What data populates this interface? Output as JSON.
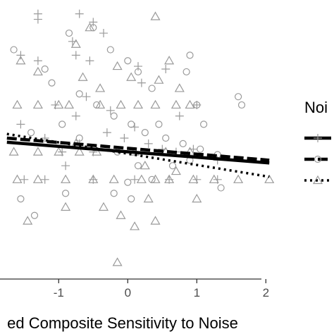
{
  "chart_data": {
    "type": "scatter",
    "xlabel": "ed Composite Sensitivity to Noise",
    "x_ticks": [
      "-1",
      "0",
      "1",
      "2"
    ],
    "x_tick_values": [
      -1,
      0,
      1,
      2
    ],
    "xlim": [
      -1.85,
      2.15
    ],
    "ylim": [
      0,
      100
    ],
    "legend": {
      "title": "Noi",
      "placement": "right",
      "entries": [
        {
          "marker": "plus",
          "linestyle": "solid"
        },
        {
          "marker": "circle",
          "linestyle": "dashed"
        },
        {
          "marker": "triangle",
          "linestyle": "dotted"
        }
      ]
    },
    "colors": {
      "points": "#9a9a9a",
      "lines": "#000000",
      "axis": "#333333"
    },
    "fit_lines": [
      {
        "style": "solid",
        "x": [
          -1.75,
          2.05
        ],
        "y": [
          48.5,
          41.0
        ]
      },
      {
        "style": "dashed",
        "x": [
          -1.75,
          2.05
        ],
        "y": [
          50.0,
          42.0
        ]
      },
      {
        "style": "dotted",
        "x": [
          -1.75,
          2.05
        ],
        "y": [
          51.5,
          36.0
        ]
      }
    ],
    "series": [
      {
        "marker": "plus",
        "points": [
          [
            -1.3,
            95
          ],
          [
            -1.3,
            93
          ],
          [
            -0.7,
            95
          ],
          [
            -0.5,
            92
          ],
          [
            -0.35,
            88
          ],
          [
            -0.75,
            80
          ],
          [
            -0.55,
            78
          ],
          [
            -0.8,
            85
          ],
          [
            -1.55,
            80
          ],
          [
            -1.3,
            78
          ],
          [
            -1.55,
            55
          ],
          [
            -1.2,
            50
          ],
          [
            -0.95,
            45
          ],
          [
            -0.7,
            48
          ],
          [
            -0.5,
            45
          ],
          [
            -0.3,
            52
          ],
          [
            -0.05,
            50
          ],
          [
            0.1,
            54
          ],
          [
            0.3,
            48
          ],
          [
            0.5,
            46
          ],
          [
            0.7,
            45
          ],
          [
            0.95,
            46
          ],
          [
            1.3,
            42
          ],
          [
            1.0,
            62
          ],
          [
            0.2,
            70
          ],
          [
            0.55,
            75
          ],
          [
            0.15,
            76
          ],
          [
            -0.25,
            60
          ],
          [
            -0.6,
            65
          ],
          [
            -0.75,
            58
          ],
          [
            -0.9,
            40
          ],
          [
            -1.2,
            35
          ],
          [
            -1.5,
            35
          ],
          [
            -0.5,
            35
          ],
          [
            0.1,
            35
          ],
          [
            0.6,
            35
          ],
          [
            1.0,
            35
          ],
          [
            1.3,
            35
          ],
          [
            -1.05,
            62
          ],
          [
            0.75,
            58
          ]
        ]
      },
      {
        "marker": "circle",
        "points": [
          [
            -1.65,
            82
          ],
          [
            -0.85,
            88
          ],
          [
            -0.5,
            90
          ],
          [
            -0.25,
            82
          ],
          [
            0.0,
            78
          ],
          [
            0.15,
            74
          ],
          [
            0.35,
            68
          ],
          [
            0.85,
            74
          ],
          [
            0.9,
            80
          ],
          [
            1.0,
            62
          ],
          [
            1.6,
            65
          ],
          [
            1.65,
            62
          ],
          [
            -1.2,
            75
          ],
          [
            -1.1,
            70
          ],
          [
            -0.7,
            66
          ],
          [
            -0.45,
            62
          ],
          [
            -0.2,
            58
          ],
          [
            0.05,
            55
          ],
          [
            0.25,
            52
          ],
          [
            0.55,
            50
          ],
          [
            0.8,
            48
          ],
          [
            1.05,
            46
          ],
          [
            1.3,
            44
          ],
          [
            -1.4,
            52
          ],
          [
            -0.15,
            45
          ],
          [
            0.35,
            35
          ],
          [
            0.65,
            40
          ],
          [
            0.9,
            42
          ],
          [
            1.35,
            32
          ],
          [
            -0.9,
            30
          ],
          [
            -1.55,
            28
          ],
          [
            -1.35,
            22
          ],
          [
            0.05,
            28
          ],
          [
            -0.2,
            30
          ],
          [
            0.0,
            34
          ],
          [
            0.15,
            40
          ],
          [
            -0.7,
            50
          ],
          [
            0.45,
            55
          ],
          [
            1.1,
            55
          ],
          [
            -0.95,
            55
          ]
        ]
      },
      {
        "marker": "triangle",
        "points": [
          [
            0.4,
            94
          ],
          [
            -0.55,
            90
          ],
          [
            -0.75,
            84
          ],
          [
            -1.55,
            78
          ],
          [
            -1.3,
            74
          ],
          [
            -0.65,
            72
          ],
          [
            -0.4,
            68
          ],
          [
            -0.15,
            76
          ],
          [
            0.05,
            72
          ],
          [
            0.6,
            78
          ],
          [
            0.45,
            71
          ],
          [
            0.75,
            68
          ],
          [
            -1.6,
            62
          ],
          [
            -1.3,
            62
          ],
          [
            -1.0,
            62
          ],
          [
            -0.85,
            62
          ],
          [
            -0.4,
            62
          ],
          [
            -0.1,
            62
          ],
          [
            0.15,
            62
          ],
          [
            0.4,
            62
          ],
          [
            0.7,
            62
          ],
          [
            0.9,
            62
          ],
          [
            -1.65,
            45
          ],
          [
            -1.3,
            45
          ],
          [
            -1.0,
            45
          ],
          [
            -0.7,
            45
          ],
          [
            -0.45,
            45
          ],
          [
            0.1,
            45
          ],
          [
            0.55,
            45
          ],
          [
            0.9,
            45
          ],
          [
            -1.6,
            35
          ],
          [
            -1.3,
            35
          ],
          [
            -0.9,
            35
          ],
          [
            -0.5,
            35
          ],
          [
            -0.2,
            35
          ],
          [
            0.2,
            35
          ],
          [
            0.4,
            35
          ],
          [
            0.6,
            35
          ],
          [
            0.95,
            35
          ],
          [
            1.25,
            35
          ],
          [
            1.6,
            35
          ],
          [
            2.05,
            35
          ],
          [
            -0.75,
            48
          ],
          [
            0.25,
            40
          ],
          [
            0.7,
            38
          ],
          [
            -0.1,
            22
          ],
          [
            0.1,
            18
          ],
          [
            -0.35,
            25
          ],
          [
            -1.45,
            20
          ],
          [
            -0.15,
            5
          ],
          [
            0.4,
            20
          ],
          [
            1.0,
            28
          ],
          [
            -0.9,
            25
          ],
          [
            0.3,
            28
          ]
        ]
      }
    ]
  }
}
